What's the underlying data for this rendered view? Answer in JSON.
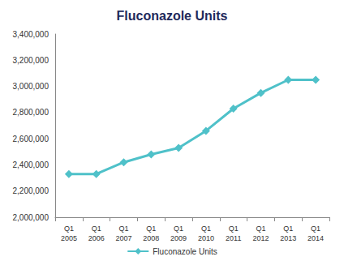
{
  "chart_data": {
    "type": "line",
    "title": "Fluconazole Units",
    "categories": [
      "Q1\n2005",
      "Q1\n2006",
      "Q1\n2007",
      "Q1\n2008",
      "Q1\n2009",
      "Q1\n2010",
      "Q1\n2011",
      "Q1\n2012",
      "Q1\n2013",
      "Q1\n2014"
    ],
    "series": [
      {
        "name": "Fluconazole Units",
        "color": "#4fc1c9",
        "marker": "diamond",
        "values": [
          2330000,
          2330000,
          2420000,
          2480000,
          2530000,
          2660000,
          2830000,
          2950000,
          3050000,
          3050000
        ]
      }
    ],
    "ylim": [
      2000000,
      3400000
    ],
    "yticks": [
      {
        "value": 2000000,
        "label": "2,000,000"
      },
      {
        "value": 2200000,
        "label": "2,200,000"
      },
      {
        "value": 2400000,
        "label": "2,400,000"
      },
      {
        "value": 2600000,
        "label": "2,600,000"
      },
      {
        "value": 2800000,
        "label": "2,800,000"
      },
      {
        "value": 3000000,
        "label": "3,000,000"
      },
      {
        "value": 3200000,
        "label": "3,200,000"
      },
      {
        "value": 3400000,
        "label": "3,400,000"
      }
    ],
    "grid": false,
    "legend": "bottom"
  }
}
